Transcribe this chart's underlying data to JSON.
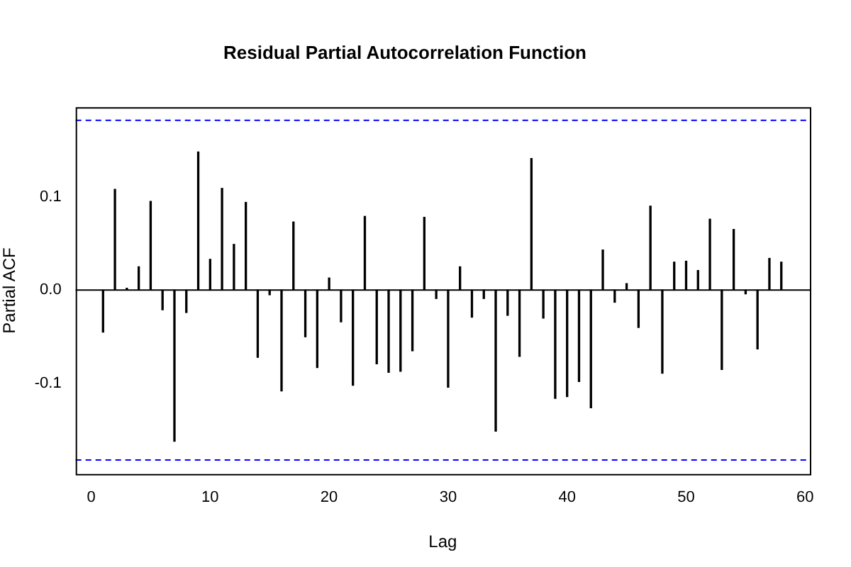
{
  "chart_data": {
    "type": "bar",
    "title": "Residual Partial Autocorrelation Function",
    "xlabel": "Lag",
    "ylabel": "Partial ACF",
    "x": [
      1,
      2,
      3,
      4,
      5,
      6,
      7,
      8,
      9,
      10,
      11,
      12,
      13,
      14,
      15,
      16,
      17,
      18,
      19,
      20,
      21,
      22,
      23,
      24,
      25,
      26,
      27,
      28,
      29,
      30,
      31,
      32,
      33,
      34,
      35,
      36,
      37,
      38,
      39,
      40,
      41,
      42,
      43,
      44,
      45,
      46,
      47,
      48,
      49,
      50,
      51,
      52,
      53,
      54,
      55,
      56,
      57,
      58
    ],
    "values": [
      -0.045,
      0.108,
      0.002,
      0.025,
      0.095,
      -0.021,
      -0.162,
      -0.024,
      0.148,
      0.033,
      0.109,
      0.049,
      0.094,
      -0.072,
      -0.005,
      -0.108,
      0.073,
      -0.05,
      -0.083,
      0.013,
      -0.034,
      -0.102,
      0.079,
      -0.079,
      -0.088,
      -0.087,
      -0.065,
      0.078,
      -0.009,
      -0.104,
      0.025,
      -0.029,
      -0.009,
      -0.151,
      -0.027,
      -0.071,
      0.141,
      -0.03,
      -0.116,
      -0.114,
      -0.098,
      -0.126,
      0.043,
      -0.013,
      0.007,
      -0.04,
      0.09,
      -0.089,
      0.03,
      0.031,
      0.021,
      0.076,
      -0.085,
      0.065,
      -0.004,
      -0.063,
      0.034,
      0.03
    ],
    "color": "#000000",
    "xlim": [
      -1.3,
      60.4
    ],
    "xticks": [
      0,
      10,
      20,
      30,
      40,
      50,
      60
    ],
    "ylim": [
      -0.197,
      0.196
    ],
    "yticks": [
      -0.1,
      {
        "value": 0,
        "label": "0.0"
      },
      0.1
    ],
    "ref_lines": [
      {
        "axis": "y",
        "value": 0,
        "color": "#000000",
        "line_style": "solid"
      },
      {
        "axis": "y",
        "value": 0.182,
        "color": "#0000ff",
        "line_style": "dashed"
      },
      {
        "axis": "y",
        "value": -0.182,
        "color": "#0000ff",
        "line_style": "dashed"
      }
    ]
  }
}
